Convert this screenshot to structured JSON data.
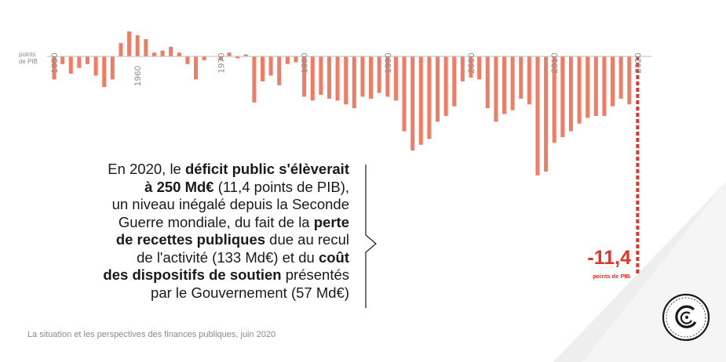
{
  "chart_data": {
    "type": "bar",
    "title": "",
    "unit_label": [
      "points",
      "de PIB"
    ],
    "x_tick_labels": [
      "1950",
      "1960",
      "1970",
      "1980",
      "1990",
      "2000",
      "2010",
      "2020"
    ],
    "x_ticks_top": [
      1950,
      1970,
      1980,
      1990,
      2000,
      2010,
      2020
    ],
    "x_ticks_bottom": [
      1960
    ],
    "bar_color": "#f07d63",
    "highlight_color": "#e3342a",
    "years": [
      1950,
      1951,
      1952,
      1953,
      1954,
      1955,
      1956,
      1957,
      1958,
      1959,
      1960,
      1961,
      1962,
      1963,
      1964,
      1965,
      1966,
      1967,
      1968,
      1969,
      1970,
      1971,
      1972,
      1973,
      1974,
      1975,
      1976,
      1977,
      1978,
      1979,
      1980,
      1981,
      1982,
      1983,
      1984,
      1985,
      1986,
      1987,
      1988,
      1989,
      1990,
      1991,
      1992,
      1993,
      1994,
      1995,
      1996,
      1997,
      1998,
      1999,
      2000,
      2001,
      2002,
      2003,
      2004,
      2005,
      2006,
      2007,
      2008,
      2009,
      2010,
      2011,
      2012,
      2013,
      2014,
      2015,
      2016,
      2017,
      2018,
      2019,
      2020
    ],
    "values": [
      -1.2,
      -0.4,
      -0.9,
      -0.6,
      -0.4,
      -1.0,
      -1.6,
      -1.2,
      0.7,
      1.3,
      1.1,
      0.9,
      0.2,
      0.3,
      0.5,
      0.2,
      -0.4,
      -1.2,
      -0.2,
      0,
      -0.2,
      0.2,
      -0.1,
      0.1,
      -2.4,
      -1.3,
      -1.0,
      -1.5,
      -0.4,
      -0.3,
      -2.1,
      -2.3,
      -2.0,
      -2.2,
      -2.3,
      -2.5,
      -2.7,
      -2.1,
      -2.2,
      -1.9,
      -2.1,
      -2.3,
      -3.9,
      -4.9,
      -4.6,
      -4.3,
      -3.4,
      -3.1,
      -2.6,
      -1.3,
      -1.1,
      -1.2,
      -2.7,
      -3.4,
      -3.0,
      -2.8,
      -2.2,
      -2.5,
      -6.2,
      -6.0,
      -4.5,
      -4.2,
      -3.9,
      -3.5,
      -3.2,
      -3.1,
      -3.1,
      -2.6,
      -2.2,
      -2.5,
      -11.4
    ],
    "ylim": [
      -11.4,
      1.3
    ],
    "callout": {
      "value": "-11,4",
      "unit": "points de PIB"
    }
  },
  "text": {
    "l1a": "En 2020, le ",
    "l1b": "déficit public s'élèverait",
    "l2a": "à 250 Md€",
    "l2b": " (11,4 points de PIB),",
    "l3": "un niveau inégalé depuis la Seconde",
    "l4a": "Guerre mondiale, du fait de la ",
    "l4b": "perte",
    "l5a": "de recettes publiques",
    "l5b": " due au recul",
    "l6a": "de l'activité (133 Md€) et du ",
    "l6b": "coût",
    "l7a": "des dispositifs de soutien",
    "l7b": " présentés",
    "l8": "par le Gouvernement (57 Md€)"
  },
  "source": "La situation et les perspectives des finances publiques, juin 2020"
}
